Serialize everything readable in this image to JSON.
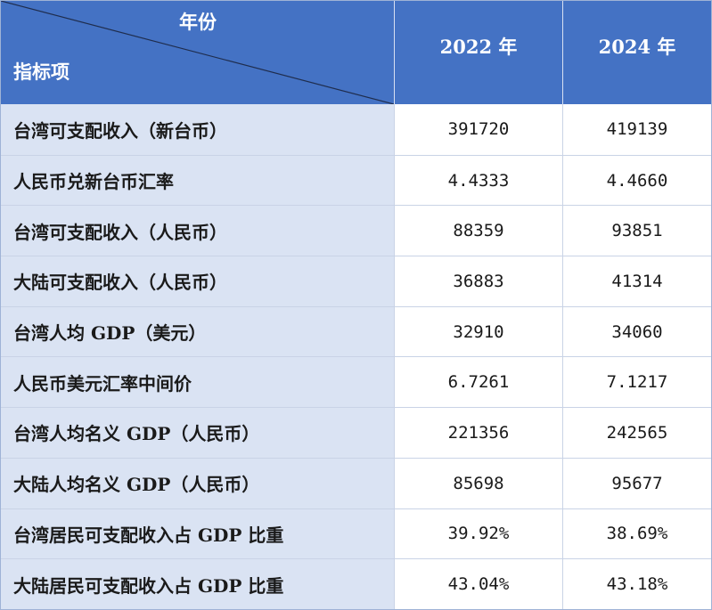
{
  "header": {
    "year_label": "年份",
    "metric_label": "指标项",
    "col_2022": "2022 年",
    "col_2024": "2024 年"
  },
  "rows": [
    {
      "label": "台湾可支配收入（新台币）",
      "v2022": "391720",
      "v2024": "419139"
    },
    {
      "label": "人民币兑新台币汇率",
      "v2022": "4.4333",
      "v2024": "4.4660"
    },
    {
      "label": "台湾可支配收入（人民币）",
      "v2022": "88359",
      "v2024": "93851"
    },
    {
      "label": "大陆可支配收入（人民币）",
      "v2022": "36883",
      "v2024": "41314"
    },
    {
      "label": "台湾人均 GDP（美元）",
      "v2022": "32910",
      "v2024": "34060"
    },
    {
      "label": "人民币美元汇率中间价",
      "v2022": "6.7261",
      "v2024": "7.1217"
    },
    {
      "label": "台湾人均名义 GDP（人民币）",
      "v2022": "221356",
      "v2024": "242565"
    },
    {
      "label": "大陆人均名义 GDP（人民币）",
      "v2022": "85698",
      "v2024": "95677"
    },
    {
      "label": "台湾居民可支配收入占 GDP 比重",
      "v2022": "39.92%",
      "v2024": "38.69%"
    },
    {
      "label": "大陆居民可支配收入占 GDP 比重",
      "v2022": "43.04%",
      "v2024": "43.18%"
    }
  ],
  "colors": {
    "header_bg": "#4472c4",
    "label_bg": "#dae3f3",
    "header_text": "#ffffff"
  }
}
